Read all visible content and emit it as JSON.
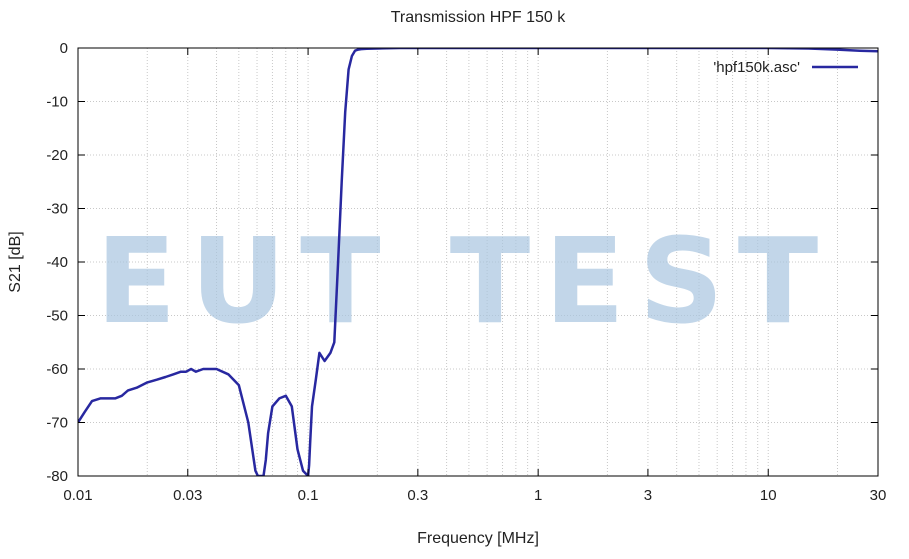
{
  "chart_data": {
    "type": "line",
    "title": "Transmission HPF 150 k",
    "xlabel": "Frequency [MHz]",
    "ylabel": "S21 [dB]",
    "x_scale": "log",
    "xlim": [
      0.01,
      30
    ],
    "ylim": [
      -80,
      0
    ],
    "x_ticks": [
      {
        "value": 0.01,
        "label": "0.01"
      },
      {
        "value": 0.03,
        "label": "0.03"
      },
      {
        "value": 0.1,
        "label": "0.1"
      },
      {
        "value": 0.3,
        "label": "0.3"
      },
      {
        "value": 1,
        "label": "1"
      },
      {
        "value": 3,
        "label": "3"
      },
      {
        "value": 10,
        "label": "10"
      },
      {
        "value": 30,
        "label": "30"
      }
    ],
    "y_ticks": [
      {
        "value": 0,
        "label": "0"
      },
      {
        "value": -10,
        "label": "-10"
      },
      {
        "value": -20,
        "label": "-20"
      },
      {
        "value": -30,
        "label": "-30"
      },
      {
        "value": -40,
        "label": "-40"
      },
      {
        "value": -50,
        "label": "-50"
      },
      {
        "value": -60,
        "label": "-60"
      },
      {
        "value": -70,
        "label": "-70"
      },
      {
        "value": -80,
        "label": "-80"
      }
    ],
    "grid": true,
    "legend_position": "top-right",
    "series": [
      {
        "name": "'hpf150k.asc'",
        "color": "#2828a0",
        "x": [
          0.01,
          0.0107,
          0.0115,
          0.0125,
          0.0135,
          0.0145,
          0.0155,
          0.0165,
          0.018,
          0.02,
          0.022,
          0.024,
          0.026,
          0.028,
          0.0295,
          0.031,
          0.0325,
          0.035,
          0.04,
          0.045,
          0.05,
          0.055,
          0.059,
          0.0605,
          0.062,
          0.063,
          0.064,
          0.0655,
          0.067,
          0.07,
          0.075,
          0.08,
          0.085,
          0.09,
          0.095,
          0.1,
          0.101,
          0.102,
          0.104,
          0.108,
          0.112,
          0.118,
          0.125,
          0.13,
          0.135,
          0.14,
          0.145,
          0.15,
          0.155,
          0.16,
          0.165,
          0.17,
          0.18,
          0.2,
          0.22,
          0.25,
          0.28,
          0.3,
          0.4,
          0.6,
          1,
          2,
          3,
          5,
          10,
          15,
          20,
          25,
          30
        ],
        "y": [
          -70,
          -68,
          -66,
          -65.5,
          -65.5,
          -65.5,
          -65,
          -64,
          -63.5,
          -62.5,
          -62,
          -61.5,
          -61,
          -60.5,
          -60.5,
          -60,
          -60.5,
          -60,
          -60,
          -61,
          -63,
          -70,
          -79,
          -80,
          -80,
          -80,
          -80,
          -77,
          -72,
          -67,
          -65.5,
          -65,
          -67,
          -75,
          -79,
          -80,
          -78,
          -74,
          -67,
          -62,
          -57,
          -58.5,
          -57,
          -55,
          -40,
          -25,
          -12,
          -4,
          -1.5,
          -0.5,
          -0.3,
          -0.2,
          -0.15,
          -0.1,
          -0.05,
          0,
          0,
          0,
          0,
          0,
          0,
          0,
          0,
          0,
          0,
          -0.1,
          -0.3,
          -0.5,
          -0.6
        ]
      }
    ]
  },
  "watermark": "EUT TEST"
}
